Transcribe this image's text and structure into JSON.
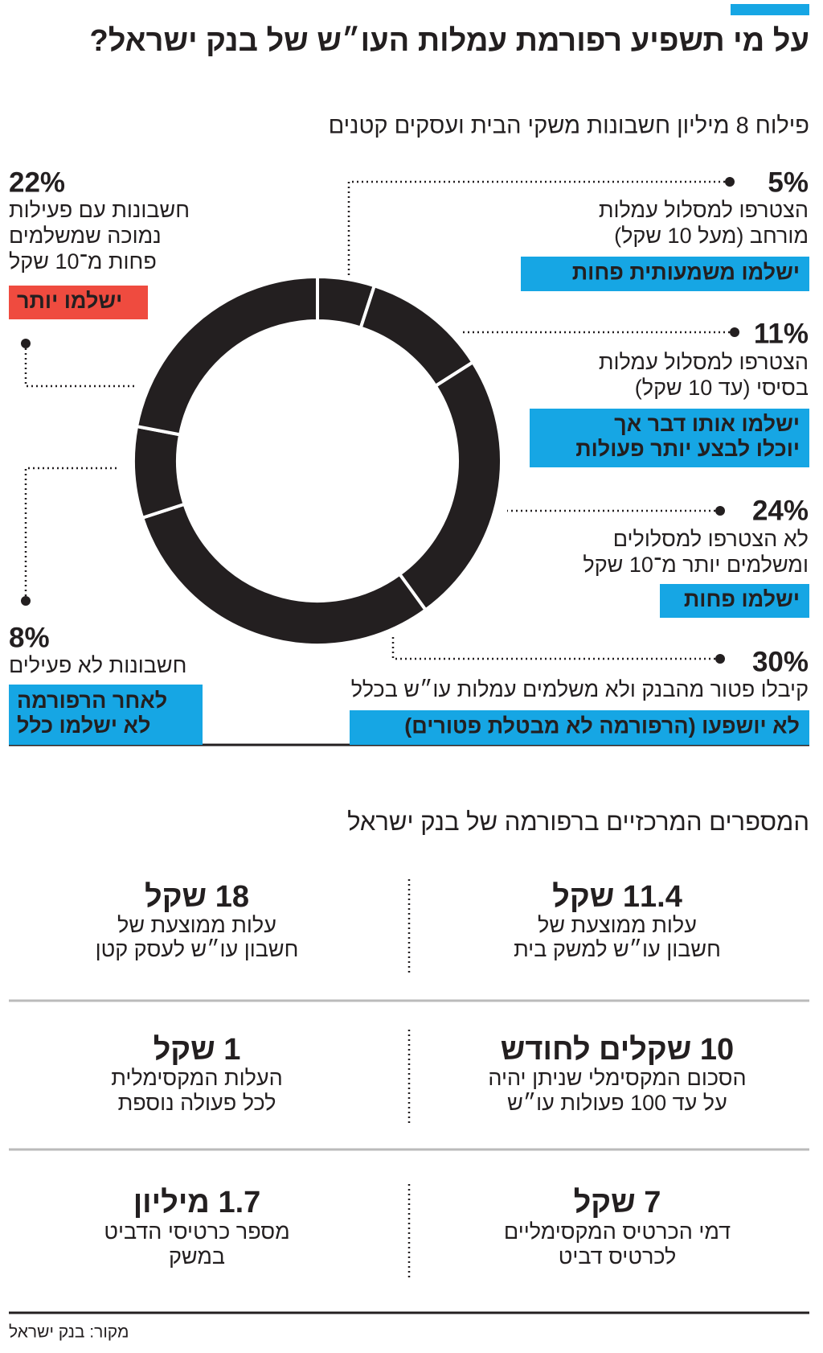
{
  "chart_data": {
    "type": "donut",
    "title": "על מי תשפיע רפורמת עמלות העו״ש של בנק ישראל?",
    "subtitle": "פילוח 8 מיליון חשבונות משקי הבית ועסקים קטנים",
    "values": [
      5,
      11,
      24,
      30,
      8,
      22
    ],
    "value_labels": [
      "5%",
      "11%",
      "24%",
      "30%",
      "8%",
      "22%"
    ],
    "color": "#231f20",
    "labels": [
      [
        "הצטרפו למסלול עמלות",
        "מורחב (מעל 10 שקל)"
      ],
      [
        "הצטרפו למסלול עמלות",
        "בסיסי (עד 10 שקל)"
      ],
      [
        "לא הצטרפו למסלולים",
        "ומשלמים יותר מ־10 שקל"
      ],
      [
        "קיבלו פטור מהבנק ולא משלמים עמלות עו״ש בכלל"
      ],
      [
        "חשבונות לא פעילים"
      ],
      [
        "חשבונות עם פעילות",
        "נמוכה שמשלמים",
        "פחות מ־10 שקל"
      ]
    ],
    "tags": [
      {
        "lines": [
          "ישלמו משמעותית פחות"
        ],
        "color": "#16a6e4"
      },
      {
        "lines": [
          "ישלמו אותו דבר אך",
          "יוכלו לבצע יותר פעולות"
        ],
        "color": "#16a6e4"
      },
      {
        "lines": [
          "ישלמו פחות"
        ],
        "color": "#16a6e4"
      },
      {
        "lines": [
          "לא יושפעו (הרפורמה לא מבטלת פטורים)"
        ],
        "color": "#16a6e4"
      },
      {
        "lines": [
          "לאחר הרפורמה",
          "לא ישלמו כלל"
        ],
        "color": "#16a6e4"
      },
      {
        "lines": [
          "ישלמו יותר"
        ],
        "color": "#ef4b3f"
      }
    ]
  },
  "stats": {
    "title": "המספרים המרכזיים ברפורמה של בנק ישראל",
    "items": [
      {
        "value": "11.4 שקל",
        "lines": [
          "עלות ממוצעת של",
          "חשבון עו״ש למשק בית"
        ]
      },
      {
        "value": "18 שקל",
        "lines": [
          "עלות ממוצעת של",
          "חשבון עו״ש לעסק קטן"
        ]
      },
      {
        "value": "10 שקלים לחודש",
        "lines": [
          "הסכום המקסימלי שניתן יהיה",
          "על עד 100 פעולות עו״ש"
        ]
      },
      {
        "value": "1 שקל",
        "lines": [
          "העלות המקסימלית",
          "לכל פעולה נוספת"
        ]
      },
      {
        "value": "7 שקל",
        "lines": [
          "דמי הכרטיס המקסימליים",
          "לכרטיס דביט"
        ]
      },
      {
        "value": "1.7 מיליון",
        "lines": [
          "מספר כרטיסי הדביט",
          "במשק"
        ]
      }
    ]
  },
  "source": "מקור: בנק ישראל"
}
